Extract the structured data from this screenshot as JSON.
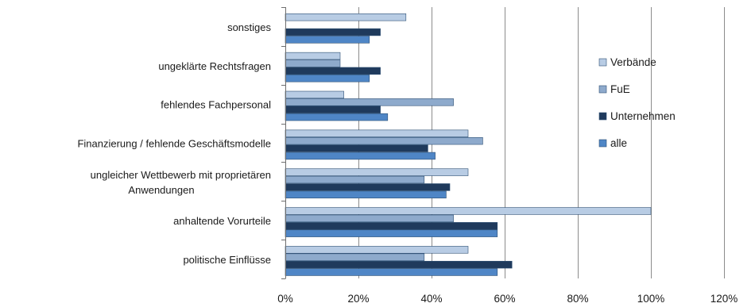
{
  "chart_data": {
    "type": "bar",
    "orientation": "horizontal",
    "categories": [
      "sonstiges",
      "ungeklärte Rechtsfragen",
      "fehlendes Fachpersonal",
      "Finanzierung / fehlende Geschäftsmodelle",
      "ungleicher Wettbewerb mit proprietären Anwendungen",
      "anhaltende Vorurteile",
      "politische Einflüsse"
    ],
    "category_lines": [
      [
        "sonstiges"
      ],
      [
        "ungeklärte Rechtsfragen"
      ],
      [
        "fehlendes Fachpersonal"
      ],
      [
        "Finanzierung / fehlende Geschäftsmodelle"
      ],
      [
        "ungleicher Wettbewerb mit proprietären",
        "Anwendungen"
      ],
      [
        "anhaltende Vorurteile"
      ],
      [
        "politische Einflüsse"
      ]
    ],
    "series": [
      {
        "name": "Verbände",
        "color": "#b8cce4",
        "values": [
          33,
          15,
          16,
          50,
          50,
          100,
          50
        ]
      },
      {
        "name": "FuE",
        "color": "#8eaacc",
        "values": [
          0,
          15,
          46,
          54,
          38,
          46,
          38
        ]
      },
      {
        "name": "Unternehmen",
        "color": "#1f3a5c",
        "values": [
          26,
          26,
          26,
          39,
          45,
          58,
          62
        ]
      },
      {
        "name": "alle",
        "color": "#4f86c6",
        "values": [
          23,
          23,
          28,
          41,
          44,
          58,
          58
        ]
      }
    ],
    "xlim": [
      0,
      120
    ],
    "xticks": [
      "0%",
      "20%",
      "40%",
      "60%",
      "80%",
      "100%",
      "120%"
    ],
    "grid": "vertical",
    "legend": "right"
  }
}
